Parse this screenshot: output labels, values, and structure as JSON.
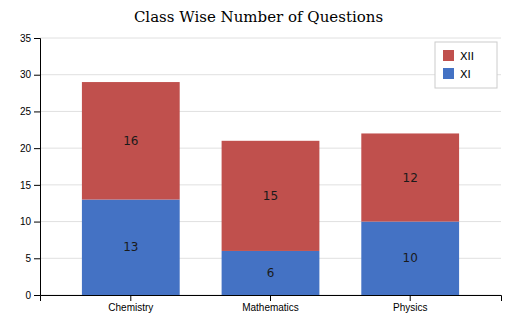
{
  "chart_data": {
    "type": "bar",
    "title": "Class Wise Number of Questions",
    "categories": [
      "Chemistry",
      "Mathematics",
      "Physics"
    ],
    "series": [
      {
        "name": "XI",
        "color": "#4472C4",
        "values": [
          13,
          6,
          10
        ]
      },
      {
        "name": "XII",
        "color": "#C0504D",
        "values": [
          16,
          15,
          12
        ]
      }
    ],
    "stacked": true,
    "data_labels": true,
    "ylim": [
      0,
      35
    ],
    "yticks": [
      0,
      5,
      10,
      15,
      20,
      25,
      30,
      35
    ],
    "grid": true,
    "legend": "upper right"
  }
}
